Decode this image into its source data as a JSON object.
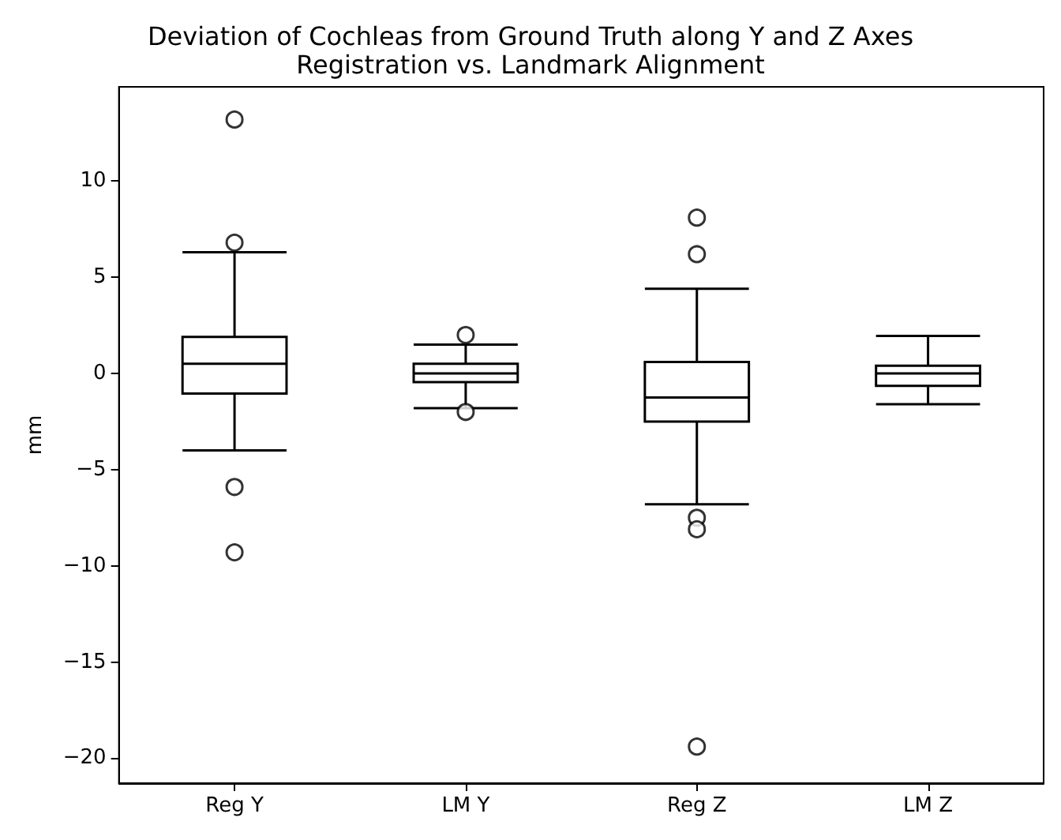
{
  "chart_data": {
    "type": "box",
    "title": "Deviation of Cochleas from Ground Truth along Y and Z Axes",
    "subtitle": "Registration vs. Landmark Alignment",
    "ylabel": "mm",
    "categories": [
      "Reg Y",
      "LM Y",
      "Reg Z",
      "LM Z"
    ],
    "boxes": [
      {
        "low": -4.0,
        "q1": -1.05,
        "median": 0.5,
        "q3": 1.9,
        "high": 6.3,
        "outliers": [
          13.2,
          6.8,
          -5.9,
          -9.3
        ]
      },
      {
        "low": -1.8,
        "q1": -0.45,
        "median": 0.0,
        "q3": 0.5,
        "high": 1.5,
        "outliers": [
          2.0,
          -2.0
        ]
      },
      {
        "low": -6.8,
        "q1": -2.5,
        "median": -1.25,
        "q3": 0.6,
        "high": 4.4,
        "outliers": [
          8.1,
          6.2,
          -7.5,
          -8.1,
          -19.4
        ]
      },
      {
        "low": -1.6,
        "q1": -0.65,
        "median": 0.0,
        "q3": 0.4,
        "high": 1.95
      }
    ],
    "color": "#000000",
    "ylim": [
      -21.3,
      14.9
    ],
    "yticks": [
      -20,
      -15,
      -10,
      -5,
      0,
      5,
      10
    ]
  }
}
